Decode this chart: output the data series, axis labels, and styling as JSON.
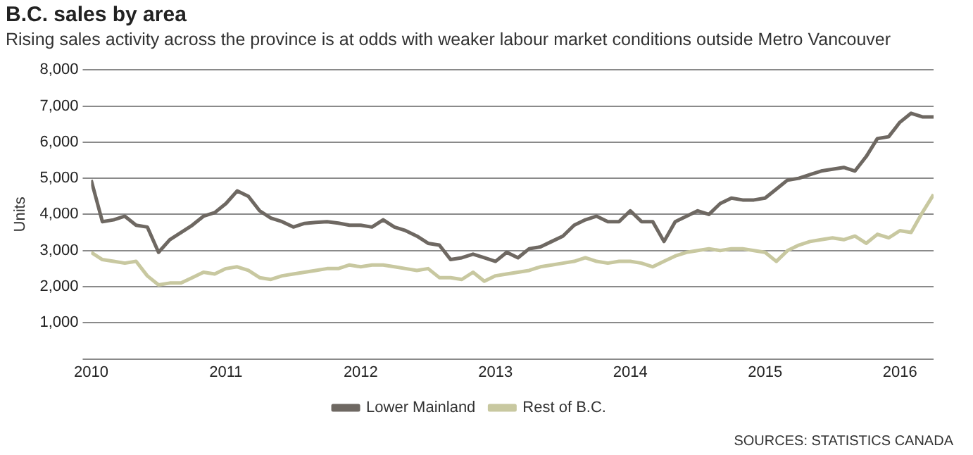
{
  "chart_data": {
    "type": "line",
    "title": "B.C. sales by area",
    "subtitle": "Rising sales activity across the province is at odds with weaker labour market conditions outside Metro Vancouver",
    "ylabel": "Units",
    "annotations": [
      "SOURCES: STATISTICS CANADA"
    ],
    "x": [
      "2010-01",
      "2010-02",
      "2010-03",
      "2010-04",
      "2010-05",
      "2010-06",
      "2010-07",
      "2010-08",
      "2010-09",
      "2010-10",
      "2010-11",
      "2010-12",
      "2011-01",
      "2011-02",
      "2011-03",
      "2011-04",
      "2011-05",
      "2011-06",
      "2011-07",
      "2011-08",
      "2011-09",
      "2011-10",
      "2011-11",
      "2011-12",
      "2012-01",
      "2012-02",
      "2012-03",
      "2012-04",
      "2012-05",
      "2012-06",
      "2012-07",
      "2012-08",
      "2012-09",
      "2012-10",
      "2012-11",
      "2012-12",
      "2013-01",
      "2013-02",
      "2013-03",
      "2013-04",
      "2013-05",
      "2013-06",
      "2013-07",
      "2013-08",
      "2013-09",
      "2013-10",
      "2013-11",
      "2013-12",
      "2014-01",
      "2014-02",
      "2014-03",
      "2014-04",
      "2014-05",
      "2014-06",
      "2014-07",
      "2014-08",
      "2014-09",
      "2014-10",
      "2014-11",
      "2014-12",
      "2015-01",
      "2015-02",
      "2015-03",
      "2015-04",
      "2015-05",
      "2015-06",
      "2015-07",
      "2015-08",
      "2015-09",
      "2015-10",
      "2015-11",
      "2015-12",
      "2016-01",
      "2016-02",
      "2016-03",
      "2016-04"
    ],
    "series": [
      {
        "name": "Lower Mainland",
        "color": "#6e6862",
        "values": [
          4950,
          3800,
          3850,
          3950,
          3700,
          3650,
          2950,
          3300,
          3500,
          3700,
          3950,
          4050,
          4300,
          4650,
          4500,
          4100,
          3900,
          3800,
          3650,
          3750,
          3780,
          3800,
          3760,
          3700,
          3700,
          3650,
          3850,
          3650,
          3550,
          3400,
          3200,
          3150,
          2750,
          2800,
          2900,
          2800,
          2700,
          2950,
          2800,
          3050,
          3100,
          3250,
          3400,
          3700,
          3850,
          3950,
          3800,
          3800,
          4100,
          3800,
          3800,
          3250,
          3800,
          3950,
          4100,
          4000,
          4300,
          4450,
          4400,
          4400,
          4450,
          4700,
          4950,
          5000,
          5100,
          5200,
          5250,
          5300,
          5200,
          5600,
          6100,
          6150,
          6550,
          6800,
          6700,
          6700
        ]
      },
      {
        "name": "Rest of B.C.",
        "color": "#c8c8a0",
        "values": [
          2950,
          2750,
          2700,
          2650,
          2700,
          2300,
          2050,
          2100,
          2100,
          2250,
          2400,
          2350,
          2500,
          2550,
          2450,
          2250,
          2200,
          2300,
          2350,
          2400,
          2450,
          2500,
          2500,
          2600,
          2550,
          2600,
          2600,
          2550,
          2500,
          2450,
          2500,
          2250,
          2250,
          2200,
          2400,
          2150,
          2300,
          2350,
          2400,
          2450,
          2550,
          2600,
          2650,
          2700,
          2800,
          2700,
          2650,
          2700,
          2700,
          2650,
          2550,
          2700,
          2850,
          2950,
          3000,
          3050,
          3000,
          3050,
          3050,
          3000,
          2950,
          2700,
          3000,
          3150,
          3250,
          3300,
          3350,
          3300,
          3400,
          3200,
          3450,
          3350,
          3550,
          3500,
          4050,
          4550
        ]
      }
    ],
    "xlim": [
      "2010-01",
      "2016-04"
    ],
    "xticks": [
      "2010",
      "2011",
      "2012",
      "2013",
      "2014",
      "2015",
      "2016"
    ],
    "ylim": [
      0,
      8000
    ],
    "yticks": [
      {
        "value": 0,
        "label": null
      },
      {
        "value": 1000,
        "label": "1,000"
      },
      {
        "value": 2000,
        "label": "2,000"
      },
      {
        "value": 3000,
        "label": "3,000"
      },
      {
        "value": 4000,
        "label": "4,000"
      },
      {
        "value": 5000,
        "label": "5,000"
      },
      {
        "value": 6000,
        "label": "6,000"
      },
      {
        "value": 7000,
        "label": "7,000"
      },
      {
        "value": 8000,
        "label": "8,000"
      }
    ],
    "grid": "y",
    "legend": "bottom",
    "marker": "none",
    "line_style": "solid"
  }
}
